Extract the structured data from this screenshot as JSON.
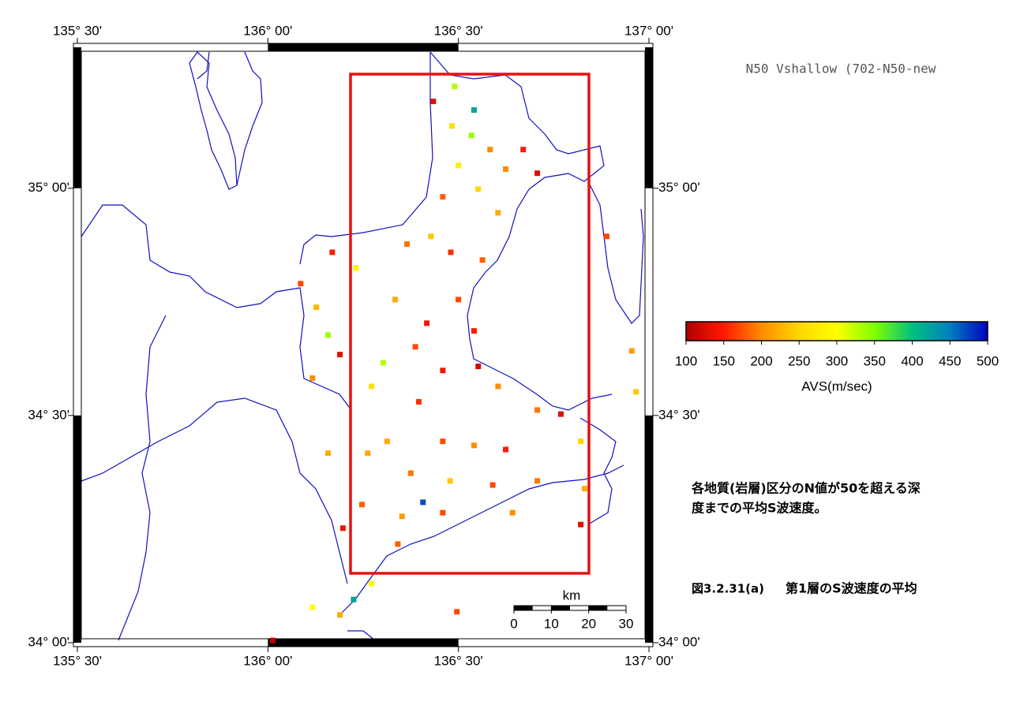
{
  "map": {
    "type": "scatter",
    "title": "N50 Vshallow (702-N50-new",
    "xlim": [
      135.5,
      137.0
    ],
    "ylim": [
      34.0,
      35.31
    ],
    "xticks": [
      {
        "value": 135.5,
        "label": "135° 30'"
      },
      {
        "value": 136.0,
        "label": "136° 00'"
      },
      {
        "value": 136.5,
        "label": "136° 30'"
      },
      {
        "value": 137.0,
        "label": "137° 00'"
      }
    ],
    "yticks": [
      {
        "value": 34.0,
        "label": "34° 00'"
      },
      {
        "value": 34.5,
        "label": "34° 30'"
      },
      {
        "value": 35.0,
        "label": "35° 00'"
      }
    ],
    "points": {
      "x": [
        136.49,
        136.434,
        136.541,
        136.483,
        136.534,
        136.583,
        136.67,
        136.5,
        136.624,
        136.707,
        136.552,
        136.459,
        136.604,
        136.428,
        136.48,
        136.563,
        136.365,
        136.231,
        136.169,
        136.086,
        136.158,
        136.127,
        136.189,
        136.117,
        136.334,
        136.417,
        136.5,
        136.541,
        136.387,
        136.459,
        136.552,
        136.303,
        136.272,
        136.604,
        136.707,
        136.769,
        136.396,
        136.313,
        136.459,
        136.541,
        136.624,
        136.821,
        136.262,
        136.375,
        136.478,
        136.59,
        136.707,
        136.831,
        136.407,
        136.247,
        136.352,
        136.459,
        136.642,
        136.821,
        136.197,
        136.341,
        136.272,
        136.225,
        136.189,
        136.496,
        136.013,
        136.889,
        136.955,
        136.966,
        136.158,
        136.117
      ],
      "y": [
        35.224,
        35.191,
        35.172,
        35.137,
        35.116,
        35.085,
        35.085,
        35.05,
        35.042,
        35.033,
        34.998,
        34.981,
        34.946,
        34.894,
        34.859,
        34.842,
        34.877,
        34.825,
        34.859,
        34.79,
        34.677,
        34.738,
        34.634,
        34.582,
        34.755,
        34.703,
        34.755,
        34.686,
        34.651,
        34.599,
        34.608,
        34.616,
        34.564,
        34.564,
        34.512,
        34.503,
        34.53,
        34.443,
        34.443,
        34.434,
        34.425,
        34.443,
        34.417,
        34.373,
        34.356,
        34.347,
        34.356,
        34.339,
        34.309,
        34.304,
        34.278,
        34.286,
        34.286,
        34.26,
        34.252,
        34.217,
        34.13,
        34.095,
        34.061,
        34.068,
        34.005,
        34.894,
        34.642,
        34.552,
        34.417,
        34.078
      ],
      "values": [
        330,
        130,
        420,
        260,
        340,
        200,
        150,
        280,
        200,
        130,
        250,
        180,
        220,
        240,
        160,
        180,
        190,
        280,
        150,
        170,
        340,
        230,
        130,
        200,
        220,
        140,
        170,
        150,
        170,
        140,
        120,
        330,
        260,
        200,
        190,
        130,
        160,
        220,
        170,
        200,
        150,
        250,
        220,
        190,
        240,
        170,
        190,
        220,
        470,
        180,
        210,
        170,
        200,
        130,
        140,
        180,
        290,
        420,
        220,
        170,
        110,
        170,
        210,
        240,
        220,
        300
      ]
    },
    "colorbar": {
      "label": "AVS(m/sec)",
      "lim": [
        100,
        500
      ],
      "ticks": [
        100,
        150,
        200,
        250,
        300,
        350,
        400,
        450,
        500
      ],
      "colormap": [
        "#b00000",
        "#ff1a00",
        "#ff8c00",
        "#ffd700",
        "#ffff00",
        "#7fff00",
        "#00c080",
        "#0080c0",
        "#0000c0"
      ]
    },
    "scalebar": {
      "unit": "km",
      "ticks": [
        0,
        10,
        20,
        30
      ]
    },
    "note": [
      "各地質(岩層)区分のN値が50を超える深",
      "度までの平均S波速度。"
    ],
    "caption": {
      "number": "図3.2.31(a)",
      "text": "第1層のS波速度の平均"
    }
  }
}
